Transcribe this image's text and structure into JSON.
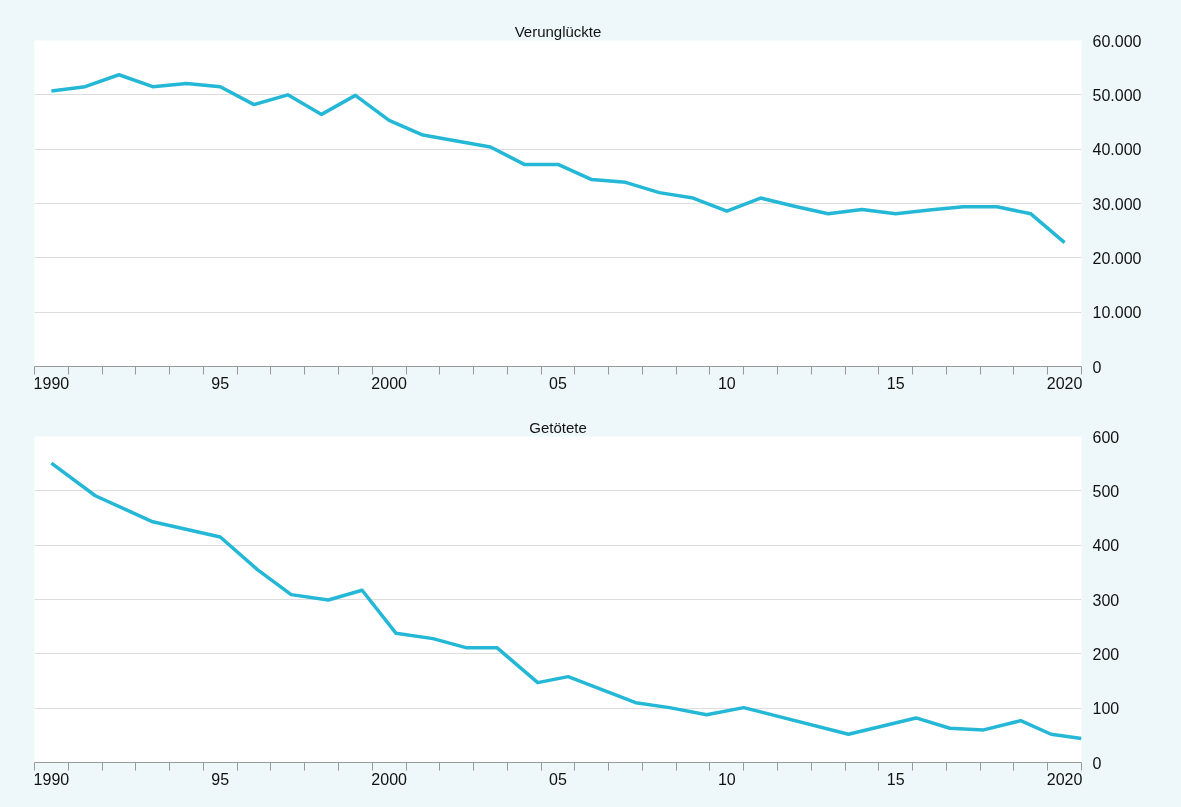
{
  "chart_data": [
    {
      "type": "line",
      "title": "Verunglückte",
      "x": [
        1990,
        1991,
        1992,
        1993,
        1994,
        1995,
        1996,
        1997,
        1998,
        1999,
        2000,
        2001,
        2002,
        2003,
        2004,
        2005,
        2006,
        2007,
        2008,
        2009,
        2010,
        2011,
        2012,
        2013,
        2014,
        2015,
        2016,
        2017,
        2018,
        2019,
        2020
      ],
      "series": [
        {
          "color": "#25b8d6",
          "values": [
            50700,
            51500,
            53700,
            51500,
            52100,
            51500,
            48200,
            50000,
            46400,
            49900,
            45300,
            42600,
            41500,
            40400,
            37200,
            37200,
            34400,
            33900,
            32000,
            31000,
            28600,
            31000,
            29500,
            28100,
            28900,
            28100,
            28800,
            29400,
            29400,
            28100,
            22800
          ]
        }
      ],
      "xlim": [
        1989.5,
        2020.5
      ],
      "xticks": [
        {
          "value": 1990,
          "label": "1990"
        },
        {
          "value": 1995,
          "label": "95"
        },
        {
          "value": 2000,
          "label": "2000"
        },
        {
          "value": 2005,
          "label": "05"
        },
        {
          "value": 2010,
          "label": "10"
        },
        {
          "value": 2015,
          "label": "15"
        },
        {
          "value": 2020,
          "label": "2020"
        },
        {
          "value": 1989.5,
          "label": null
        },
        {
          "value": 1990.5,
          "label": null
        },
        {
          "value": 1991.5,
          "label": null
        },
        {
          "value": 1992.5,
          "label": null
        },
        {
          "value": 1993.5,
          "label": null
        },
        {
          "value": 1994.5,
          "label": null
        },
        {
          "value": 1995.5,
          "label": null
        },
        {
          "value": 1996.5,
          "label": null
        },
        {
          "value": 1997.5,
          "label": null
        },
        {
          "value": 1998.5,
          "label": null
        },
        {
          "value": 1999.5,
          "label": null
        },
        {
          "value": 2000.5,
          "label": null
        },
        {
          "value": 2001.5,
          "label": null
        },
        {
          "value": 2002.5,
          "label": null
        },
        {
          "value": 2003.5,
          "label": null
        },
        {
          "value": 2004.5,
          "label": null
        },
        {
          "value": 2005.5,
          "label": null
        },
        {
          "value": 2006.5,
          "label": null
        },
        {
          "value": 2007.5,
          "label": null
        },
        {
          "value": 2008.5,
          "label": null
        },
        {
          "value": 2009.5,
          "label": null
        },
        {
          "value": 2010.5,
          "label": null
        },
        {
          "value": 2011.5,
          "label": null
        },
        {
          "value": 2012.5,
          "label": null
        },
        {
          "value": 2013.5,
          "label": null
        },
        {
          "value": 2014.5,
          "label": null
        },
        {
          "value": 2015.5,
          "label": null
        },
        {
          "value": 2016.5,
          "label": null
        },
        {
          "value": 2017.5,
          "label": null
        },
        {
          "value": 2018.5,
          "label": null
        },
        {
          "value": 2019.5,
          "label": null
        },
        {
          "value": 2020.5,
          "label": null
        }
      ],
      "ylim": [
        0,
        60000
      ],
      "yticks": [
        0,
        {
          "value": 10000,
          "label": "10.000"
        },
        {
          "value": 20000,
          "label": "20.000"
        },
        {
          "value": 30000,
          "label": "30.000"
        },
        {
          "value": 40000,
          "label": "40.000"
        },
        {
          "value": 50000,
          "label": "50.000"
        },
        {
          "value": 60000,
          "label": "60.000"
        }
      ],
      "grid": "y",
      "marker": "none",
      "line_style": "solid"
    },
    {
      "type": "line",
      "title": "Getötete",
      "series": [
        {
          "color": "#25b8d6",
          "x": [
            1990.0,
            1991.3,
            1993.0,
            1995.0,
            1996.1,
            1997.1,
            1998.2,
            1999.2,
            2000.2,
            2001.3,
            2002.3,
            2003.2,
            2004.4,
            2005.3,
            2007.3,
            2008.3,
            2009.4,
            2010.5,
            2013.6,
            2015.6,
            2016.6,
            2017.6,
            2018.7,
            2019.6,
            2020.5
          ],
          "values": [
            551,
            491,
            443,
            415,
            355,
            309,
            299,
            317,
            238,
            228,
            211,
            211,
            147,
            158,
            110,
            101,
            88,
            101,
            52,
            82,
            63,
            60,
            77,
            52,
            44
          ]
        }
      ],
      "xlim": [
        1989.5,
        2020.5
      ],
      "xticks": [
        {
          "value": 1990,
          "label": "1990"
        },
        {
          "value": 1995,
          "label": "95"
        },
        {
          "value": 2000,
          "label": "2000"
        },
        {
          "value": 2005,
          "label": "05"
        },
        {
          "value": 2010,
          "label": "10"
        },
        {
          "value": 2015,
          "label": "15"
        },
        {
          "value": 2020,
          "label": "2020"
        },
        {
          "value": 1989.5,
          "label": null
        },
        {
          "value": 1990.5,
          "label": null
        },
        {
          "value": 1991.5,
          "label": null
        },
        {
          "value": 1992.5,
          "label": null
        },
        {
          "value": 1993.5,
          "label": null
        },
        {
          "value": 1994.5,
          "label": null
        },
        {
          "value": 1995.5,
          "label": null
        },
        {
          "value": 1996.5,
          "label": null
        },
        {
          "value": 1997.5,
          "label": null
        },
        {
          "value": 1998.5,
          "label": null
        },
        {
          "value": 1999.5,
          "label": null
        },
        {
          "value": 2000.5,
          "label": null
        },
        {
          "value": 2001.5,
          "label": null
        },
        {
          "value": 2002.5,
          "label": null
        },
        {
          "value": 2003.5,
          "label": null
        },
        {
          "value": 2004.5,
          "label": null
        },
        {
          "value": 2005.5,
          "label": null
        },
        {
          "value": 2006.5,
          "label": null
        },
        {
          "value": 2007.5,
          "label": null
        },
        {
          "value": 2008.5,
          "label": null
        },
        {
          "value": 2009.5,
          "label": null
        },
        {
          "value": 2010.5,
          "label": null
        },
        {
          "value": 2011.5,
          "label": null
        },
        {
          "value": 2012.5,
          "label": null
        },
        {
          "value": 2013.5,
          "label": null
        },
        {
          "value": 2014.5,
          "label": null
        },
        {
          "value": 2015.5,
          "label": null
        },
        {
          "value": 2016.5,
          "label": null
        },
        {
          "value": 2017.5,
          "label": null
        },
        {
          "value": 2018.5,
          "label": null
        },
        {
          "value": 2019.5,
          "label": null
        },
        {
          "value": 2020.5,
          "label": null
        }
      ],
      "ylim": [
        0,
        600
      ],
      "yticks": [
        0,
        100,
        200,
        300,
        400,
        500,
        600
      ],
      "grid": "y",
      "marker": "none",
      "line_style": "solid"
    }
  ]
}
